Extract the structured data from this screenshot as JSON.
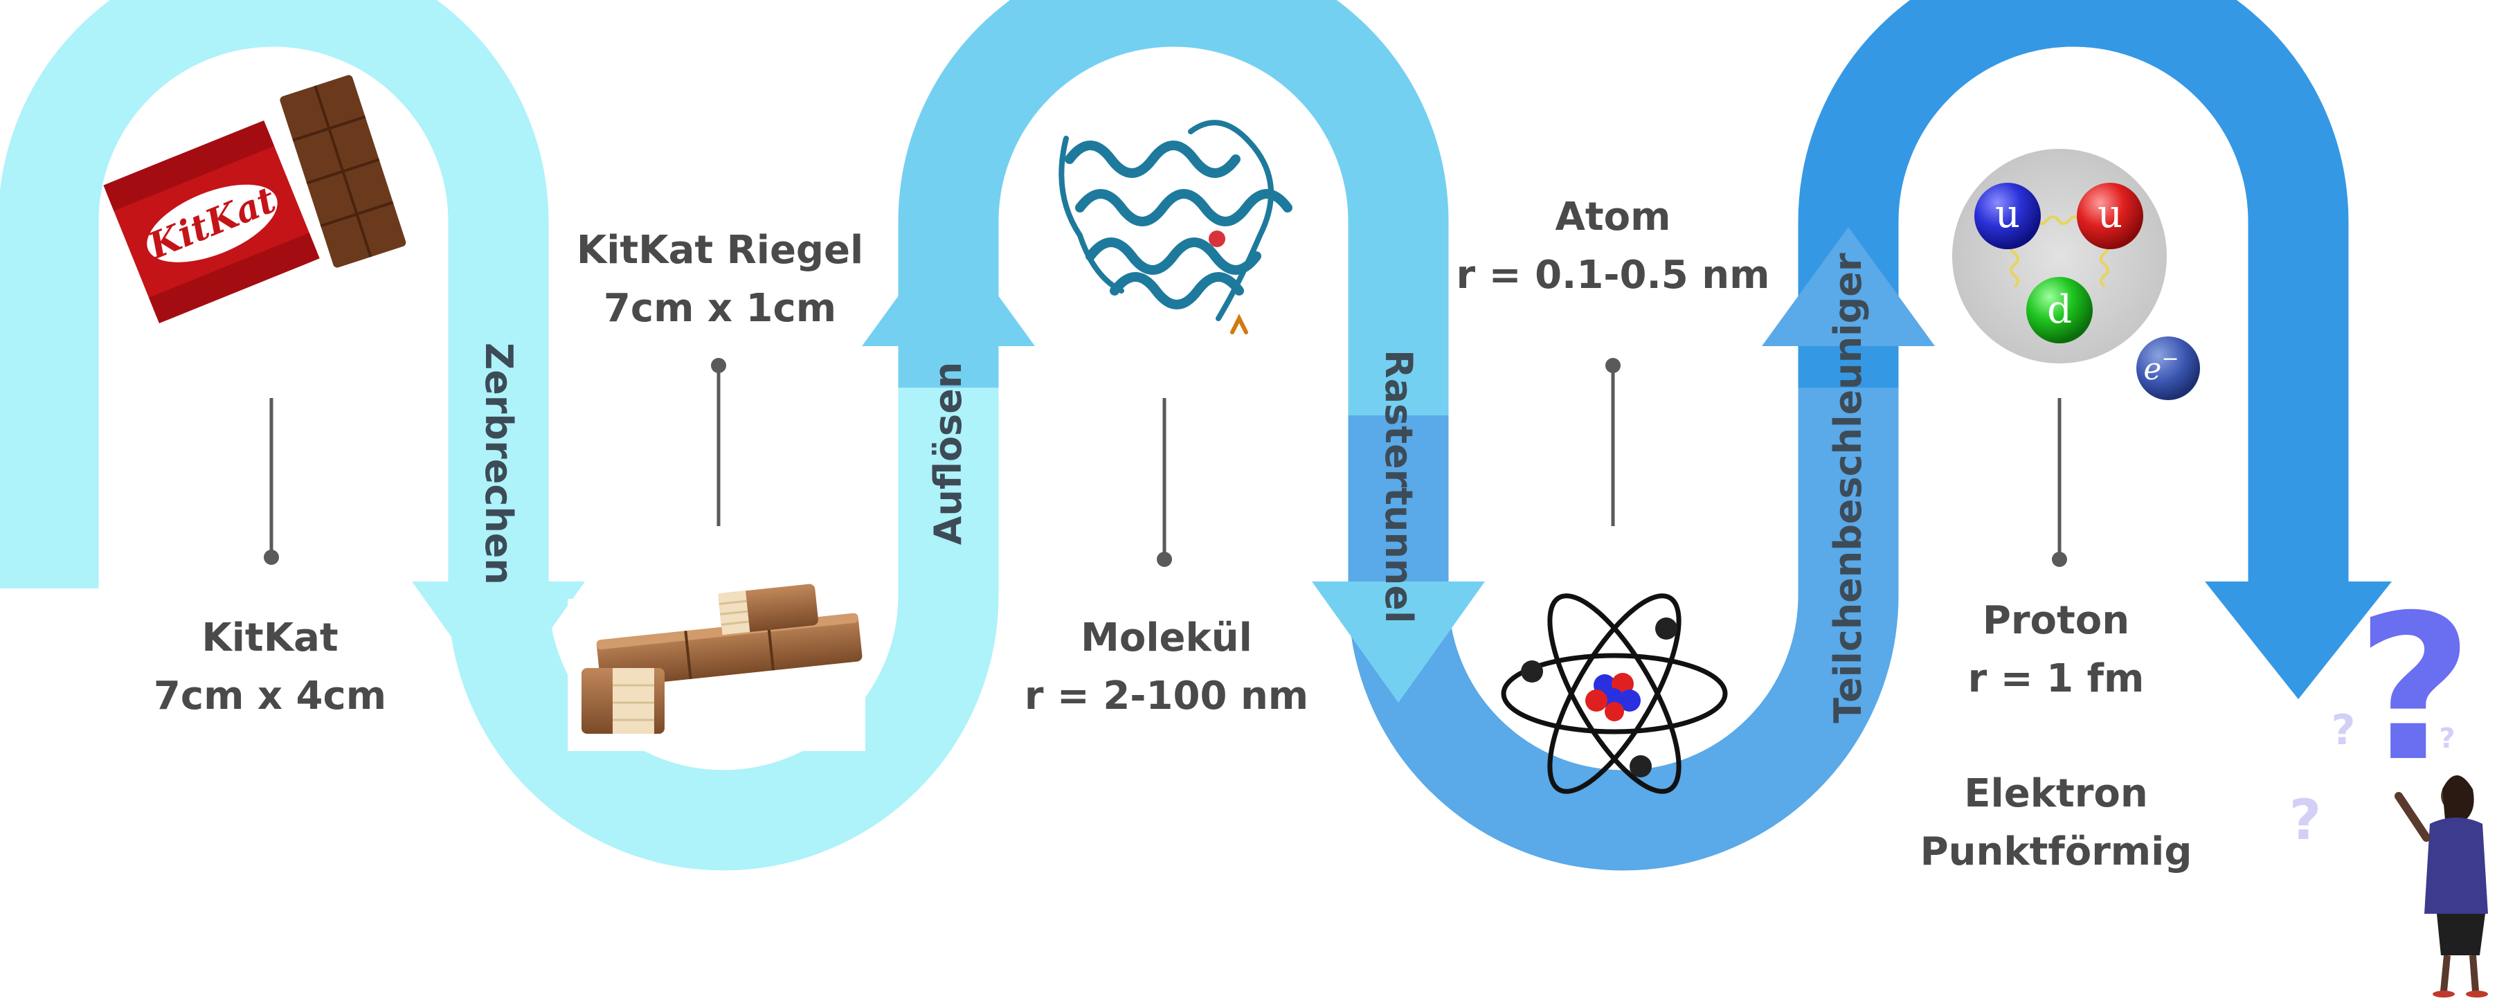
{
  "stages": [
    {
      "name": "KitKat",
      "size": "7cm x 4cm"
    },
    {
      "name": "KitKat Riegel",
      "size": "7cm x 1cm"
    },
    {
      "name": "Molekül",
      "size": "r = 2-100 nm"
    },
    {
      "name": "Atom",
      "size": "r = 0.1-0.5 nm"
    },
    {
      "name": "Proton",
      "size": "r = 1 fm"
    }
  ],
  "electron": {
    "name": "Elektron",
    "size": "Punktförmig"
  },
  "steps": [
    "Zerbrechen",
    "Auflösen",
    "Rastertunnel",
    "Teilchenbeschleuniger"
  ],
  "images": {
    "kitkat_logo": "KitKat",
    "quark_u1": "u",
    "quark_u2": "u",
    "quark_d": "d",
    "electron_symbol": "e",
    "electron_sup": "−",
    "question_mark": "?"
  },
  "colors": {
    "band_1": "#aef2fa",
    "band_2": "#74d0f1",
    "band_3": "#5aa9e8",
    "band_4": "#3598e4",
    "stem": "#5a5a5a",
    "label_text": "#4a4a4a"
  }
}
